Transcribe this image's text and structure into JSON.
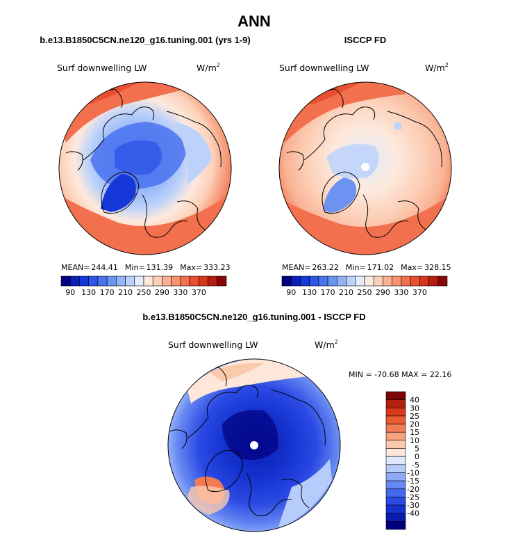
{
  "figure": {
    "title": "ANN",
    "colors": {
      "abs_scale": [
        "#000080",
        "#0a1fb8",
        "#1738d8",
        "#2f55e8",
        "#4a73ee",
        "#6c93f2",
        "#93b3f7",
        "#bcd2fb",
        "#e2ecfd",
        "#fde9dd",
        "#fcd0b8",
        "#f9b294",
        "#f69270",
        "#f2704d",
        "#e95030",
        "#d6351e",
        "#b51e12",
        "#880808"
      ],
      "diff_scale": [
        "#00007f",
        "#0a1cb0",
        "#1533d0",
        "#2b4ae4",
        "#4467ee",
        "#6688f2",
        "#8eaaf6",
        "#b6cdfb",
        "#dfe9fd",
        "#fde7d8",
        "#fbc9ac",
        "#f7a27e",
        "#f27c54",
        "#ea5a33",
        "#d9381c",
        "#b3200f",
        "#7d0505"
      ],
      "land_line": "#000000"
    }
  },
  "chart_data": [
    {
      "type": "polar_contour_map",
      "panel": "model",
      "title": "b.e13.B1850C5CN.ne120_g16.tuning.001 (yrs 1-9)",
      "variable": "Surf downwelling LW",
      "units_text": "W/m",
      "units_exp": "2",
      "stats": {
        "mean_label": "MEAN=",
        "mean": "244.41",
        "min_label": "Min=",
        "min": "131.39",
        "max_label": "Max=",
        "max": "333.23"
      },
      "colorbar_levels": [
        "90",
        "130",
        "170",
        "210",
        "250",
        "290",
        "330",
        "370"
      ],
      "colorbar_values": [
        90,
        130,
        170,
        210,
        250,
        290,
        330,
        370
      ]
    },
    {
      "type": "polar_contour_map",
      "panel": "obs",
      "title": "ISCCP FD",
      "variable": "Surf downwelling LW",
      "units_text": "W/m",
      "units_exp": "2",
      "stats": {
        "mean_label": "MEAN=",
        "mean": "263.22",
        "min_label": "Min=",
        "min": "171.02",
        "max_label": "Max=",
        "max": "328.15"
      },
      "colorbar_levels": [
        "90",
        "130",
        "170",
        "210",
        "250",
        "290",
        "330",
        "370"
      ],
      "colorbar_values": [
        90,
        130,
        170,
        210,
        250,
        290,
        330,
        370
      ]
    },
    {
      "type": "polar_contour_map",
      "panel": "difference",
      "title": "b.e13.B1850C5CN.ne120_g16.tuning.001 - ISCCP FD",
      "variable": "Surf downwelling LW",
      "units_text": "W/m",
      "units_exp": "2",
      "minmax_text": "MIN = -70.68 MAX =  22.16",
      "stats": {
        "min": -70.68,
        "max": 22.16
      },
      "colorbar_levels": [
        "40",
        "30",
        "25",
        "20",
        "15",
        "10",
        "5",
        "0",
        "-5",
        "-10",
        "-15",
        "-20",
        "-25",
        "-30",
        "-40"
      ],
      "colorbar_values": [
        40,
        30,
        25,
        20,
        15,
        10,
        5,
        0,
        -5,
        -10,
        -15,
        -20,
        -25,
        -30,
        -40
      ]
    }
  ]
}
